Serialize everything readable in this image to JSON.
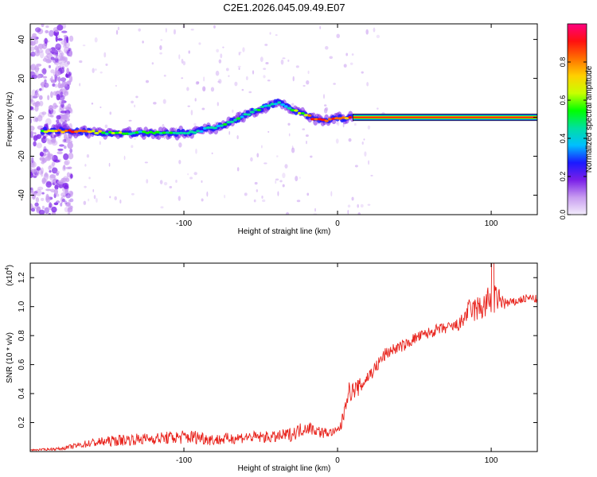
{
  "title": "C2E1.2026.045.09.49.E07",
  "chart_data": [
    {
      "type": "heatmap",
      "ylabel": "Frequency (Hz)",
      "xlabel": "Height of straight line (km)",
      "xlim": [
        -200,
        130
      ],
      "ylim": [
        -50,
        48
      ],
      "x_ticks": [
        "-100",
        "0",
        "100"
      ],
      "x_tick_values": [
        -100,
        0,
        100
      ],
      "y_ticks": [
        "-40",
        "-20",
        "0",
        "20",
        "40"
      ],
      "y_tick_values": [
        -40,
        -20,
        0,
        20,
        40
      ],
      "colorbar": {
        "label": "Normalized spectral amplitude",
        "ticks": [
          "0.0",
          "0.2",
          "0.4",
          "0.6",
          "0.8"
        ],
        "tick_values": [
          0.0,
          0.2,
          0.4,
          0.6,
          0.8
        ],
        "range": [
          0,
          1
        ],
        "colors": [
          "#f2ecfb",
          "#c89cf0",
          "#7a1fe8",
          "#1a1aff",
          "#00bfff",
          "#00e0a0",
          "#00ff00",
          "#c8ff00",
          "#ffd000",
          "#ff7000",
          "#ff1010",
          "#ff0080"
        ]
      },
      "ridge": {
        "x": [
          -192,
          -170,
          -150,
          -130,
          -110,
          -95,
          -85,
          -75,
          -65,
          -55,
          -45,
          -38,
          -32,
          -25,
          -20,
          -15,
          -8,
          0,
          5,
          10,
          20,
          40,
          60,
          80,
          100,
          130
        ],
        "y": [
          -7,
          -7,
          -8,
          -8,
          -8,
          -8,
          -6,
          -4,
          -1,
          3,
          6,
          8,
          5,
          2,
          1,
          -1,
          -2,
          0,
          -1,
          0,
          0,
          0,
          0,
          0,
          0,
          0
        ],
        "amplitude": [
          0.55,
          0.9,
          0.55,
          0.5,
          0.5,
          0.45,
          0.45,
          0.45,
          0.45,
          0.45,
          0.4,
          0.4,
          0.45,
          0.55,
          0.7,
          0.85,
          0.85,
          0.85,
          0.85,
          0.95,
          0.95,
          0.95,
          0.95,
          0.95,
          0.95,
          0.95
        ]
      }
    },
    {
      "type": "line",
      "ylabel": "SNR (10 * v/v)",
      "xlabel": "Height of straight line (km)",
      "y_multiplier": "(x10",
      "y_multiplier_exp": "4",
      "xlim": [
        -200,
        130
      ],
      "ylim": [
        0,
        1.3
      ],
      "x_ticks": [
        "-100",
        "0",
        "100"
      ],
      "x_tick_values": [
        -100,
        0,
        100
      ],
      "y_ticks": [
        "0.2",
        "0.4",
        "0.6",
        "0.8",
        "1.0",
        "1.2"
      ],
      "y_tick_values": [
        0.2,
        0.4,
        0.6,
        0.8,
        1.0,
        1.2
      ],
      "series": [
        {
          "name": "SNR",
          "color": "#e8231c",
          "x": [
            -200,
            -180,
            -160,
            -140,
            -120,
            -100,
            -90,
            -80,
            -70,
            -60,
            -50,
            -40,
            -30,
            -20,
            -15,
            -10,
            -5,
            0,
            3,
            6,
            10,
            15,
            20,
            25,
            30,
            35,
            40,
            45,
            50,
            55,
            60,
            65,
            70,
            75,
            80,
            85,
            90,
            95,
            100,
            105,
            110,
            115,
            120,
            125,
            130
          ],
          "y": [
            0.01,
            0.02,
            0.06,
            0.08,
            0.09,
            0.1,
            0.1,
            0.08,
            0.09,
            0.1,
            0.1,
            0.1,
            0.12,
            0.17,
            0.15,
            0.13,
            0.13,
            0.14,
            0.2,
            0.4,
            0.42,
            0.45,
            0.52,
            0.58,
            0.66,
            0.7,
            0.72,
            0.74,
            0.78,
            0.8,
            0.82,
            0.84,
            0.85,
            0.86,
            0.88,
            0.97,
            0.98,
            1.0,
            1.05,
            1.05,
            1.02,
            1.03,
            1.05,
            1.06,
            1.05
          ],
          "noise": [
            0.005,
            0.01,
            0.03,
            0.04,
            0.04,
            0.05,
            0.05,
            0.04,
            0.04,
            0.04,
            0.04,
            0.04,
            0.05,
            0.05,
            0.04,
            0.04,
            0.03,
            0.03,
            0.06,
            0.08,
            0.06,
            0.06,
            0.05,
            0.05,
            0.05,
            0.04,
            0.04,
            0.04,
            0.04,
            0.04,
            0.04,
            0.04,
            0.04,
            0.04,
            0.05,
            0.08,
            0.09,
            0.1,
            0.12,
            0.08,
            0.04,
            0.03,
            0.03,
            0.03,
            0.03
          ]
        }
      ]
    }
  ]
}
